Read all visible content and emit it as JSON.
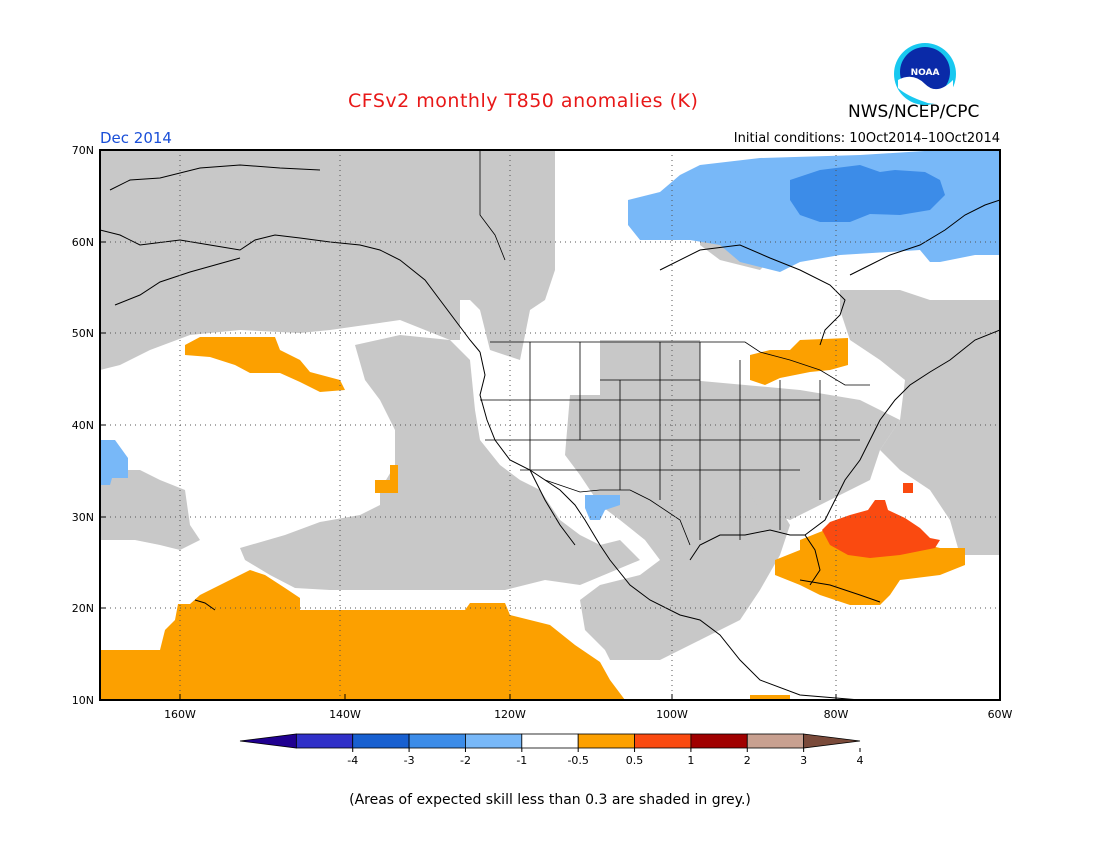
{
  "title": "CFSv2 monthly T850 anomalies (K)",
  "organization": "NWS/NCEP/CPC",
  "logo_text": "NOAA",
  "forecast_period": "Dec 2014",
  "initial_conditions": "Initial conditions: 10Oct2014–10Oct2014",
  "skill_note": "(Areas of expected skill less than 0.3 are shaded in grey.)",
  "colors": {
    "grey": "#c8c8c8",
    "orange": "#fca000",
    "red_orange": "#fa4a10",
    "light_blue": "#78b8f8",
    "mid_blue": "#3c8ce8"
  },
  "map": {
    "lon_labels": [
      "160W",
      "140W",
      "120W",
      "100W",
      "80W",
      "60W"
    ],
    "lat_labels": [
      "70N",
      "60N",
      "50N",
      "40N",
      "30N",
      "20N",
      "10N"
    ]
  },
  "colorbar": {
    "labels": [
      "-4",
      "-3",
      "-2",
      "-1",
      "-0.5",
      "0.5",
      "1",
      "2",
      "3",
      "4"
    ],
    "colors": [
      "#200090",
      "#3030c8",
      "#1860d0",
      "#3c8ce8",
      "#78b8f8",
      "#ffffff",
      "#fca000",
      "#fa4a10",
      "#a00000",
      "#c8a090",
      "#7a4a3a"
    ]
  }
}
